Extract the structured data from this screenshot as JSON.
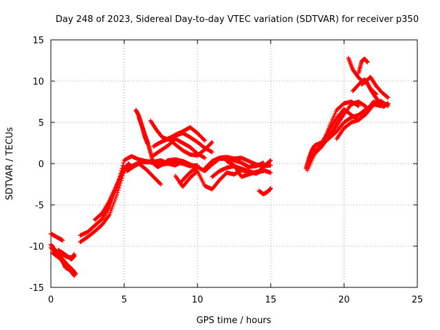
{
  "chart_data": {
    "type": "scatter",
    "title": "Day 248 of 2023, Sidereal Day-to-day VTEC variation (SDTVAR) for receiver p350",
    "xlabel": "GPS time / hours",
    "ylabel": "SDTVAR / TECUs",
    "xlim": [
      0,
      25
    ],
    "ylim": [
      -15,
      15
    ],
    "xticks": [
      "0",
      "5",
      "10",
      "15",
      "20",
      "25"
    ],
    "yticks": [
      "15",
      "10",
      "5",
      "0",
      "-5",
      "-10",
      "-15"
    ],
    "grid": true,
    "marker": "plus",
    "marker_color": "#ff0000",
    "series": [
      {
        "x": [
          0.0,
          0.3,
          0.6,
          0.9,
          1.2,
          1.5,
          1.7
        ],
        "y": [
          -10.2,
          -10.6,
          -11.2,
          -11.8,
          -12.4,
          -12.9,
          -13.4
        ]
      },
      {
        "x": [
          0.1,
          0.4,
          0.7,
          0.9,
          1.0,
          1.2,
          1.4,
          1.6
        ],
        "y": [
          -10.8,
          -11.2,
          -11.6,
          -12.2,
          -12.6,
          -12.8,
          -13.1,
          -13.6
        ]
      },
      {
        "x": [
          0.0,
          0.3,
          0.6,
          0.8
        ],
        "y": [
          -8.5,
          -8.8,
          -9.1,
          -9.3
        ]
      },
      {
        "x": [
          0.0,
          0.2,
          0.5,
          0.8,
          1.1,
          1.4,
          1.6
        ],
        "y": [
          -9.8,
          -10.3,
          -10.8,
          -11.0,
          -11.3,
          -11.4,
          -11.0
        ]
      },
      {
        "x": [
          0.5,
          0.8,
          1.1,
          1.4,
          1.6
        ],
        "y": [
          -10.5,
          -10.8,
          -11.2,
          -11.6,
          -11.2
        ]
      },
      {
        "x": [
          2.0,
          2.5,
          3.0,
          3.5,
          4.0,
          4.5,
          5.0,
          5.5,
          6.0,
          6.5,
          7.0,
          7.5,
          8.0,
          8.5,
          9.0,
          9.5,
          10.0
        ],
        "y": [
          -9.5,
          -8.9,
          -8.2,
          -7.4,
          -6.2,
          -3.8,
          -0.9,
          -0.3,
          0.1,
          0.2,
          0.1,
          -0.1,
          0.0,
          0.2,
          0.0,
          -0.3,
          -0.2
        ]
      },
      {
        "x": [
          2.0,
          2.5,
          3.0,
          3.5,
          4.0,
          4.5,
          5.0,
          5.5,
          6.0,
          6.5,
          7.0,
          7.5,
          8.0,
          8.5,
          9.0,
          9.5
        ],
        "y": [
          -8.7,
          -8.3,
          -7.5,
          -6.7,
          -5.3,
          -2.8,
          0.4,
          0.9,
          0.5,
          0.3,
          0.2,
          0.4,
          0.0,
          -0.2,
          0.3,
          -0.1
        ]
      },
      {
        "x": [
          3.0,
          3.5,
          4.0,
          4.5,
          5.0,
          5.3,
          5.5
        ],
        "y": [
          -6.8,
          -6.0,
          -4.5,
          -2.5,
          -0.7,
          0.0,
          -0.4
        ]
      },
      {
        "x": [
          3.5,
          3.8,
          4.1,
          4.4,
          4.7,
          5.0
        ],
        "y": [
          -6.4,
          -5.6,
          -4.2,
          -3.1,
          -1.8,
          -0.4
        ]
      },
      {
        "x": [
          5.2,
          5.6,
          6.0,
          6.5,
          7.0,
          7.5
        ],
        "y": [
          -0.9,
          -0.4,
          0.0,
          -0.7,
          -1.6,
          -2.5
        ]
      },
      {
        "x": [
          5.8,
          6.0,
          6.2,
          6.4,
          6.6,
          6.8,
          7.0,
          7.3,
          7.6,
          8.0,
          8.5,
          9.0,
          9.5,
          10.0
        ],
        "y": [
          6.5,
          5.8,
          4.7,
          3.6,
          2.6,
          1.3,
          0.0,
          -0.4,
          -0.1,
          0.4,
          0.5,
          0.3,
          -0.1,
          -0.4
        ]
      },
      {
        "x": [
          6.0,
          6.2,
          6.4,
          6.6
        ],
        "y": [
          5.6,
          4.6,
          3.3,
          2.4
        ]
      },
      {
        "x": [
          6.8,
          7.2,
          7.6,
          8.0,
          8.5,
          9.0,
          9.5,
          10.0,
          10.5,
          11.0
        ],
        "y": [
          5.2,
          4.1,
          3.2,
          2.9,
          3.4,
          3.7,
          3.2,
          2.6,
          1.9,
          1.4
        ]
      },
      {
        "x": [
          7.0,
          7.5,
          8.0,
          8.5,
          9.0,
          9.5,
          10.0,
          10.5
        ],
        "y": [
          2.1,
          2.6,
          3.0,
          3.5,
          3.9,
          4.4,
          3.7,
          2.8
        ]
      },
      {
        "x": [
          7.0,
          7.5,
          8.0,
          8.5,
          9.0,
          9.5,
          10.0,
          10.5
        ],
        "y": [
          1.0,
          1.6,
          2.2,
          3.0,
          2.5,
          2.0,
          1.2,
          0.7
        ]
      },
      {
        "x": [
          8.0,
          8.5,
          9.0,
          9.5,
          10.0,
          10.5,
          11.0
        ],
        "y": [
          3.1,
          2.3,
          1.6,
          1.1,
          1.0,
          1.7,
          2.6
        ]
      },
      {
        "x": [
          8.5,
          9.0,
          9.5,
          10.0,
          10.5,
          11.0,
          11.5,
          12.0,
          12.5,
          13.0,
          13.5,
          14.0,
          14.5,
          15.0
        ],
        "y": [
          -1.5,
          -2.8,
          -1.7,
          -0.9,
          -2.7,
          -3.1,
          -2.0,
          -1.1,
          -1.3,
          -0.8,
          -1.0,
          -1.2,
          -0.8,
          -1.1
        ]
      },
      {
        "x": [
          8.8,
          9.2,
          9.6,
          10.0,
          10.5,
          11.0,
          11.5,
          12.0,
          12.5,
          13.0,
          13.5,
          14.0,
          14.5
        ],
        "y": [
          -2.4,
          -1.6,
          -0.9,
          -0.4,
          -0.9,
          -0.1,
          0.6,
          0.6,
          0.4,
          0.1,
          -0.4,
          -0.3,
          0.1
        ]
      },
      {
        "x": [
          10.5,
          11.0,
          11.5,
          12.0,
          12.5,
          13.0,
          13.5,
          14.0,
          14.5,
          15.0
        ],
        "y": [
          -0.6,
          0.3,
          0.7,
          0.8,
          0.6,
          0.7,
          0.3,
          -0.1,
          -0.3,
          -0.2
        ]
      },
      {
        "x": [
          11.0,
          11.5,
          12.0,
          12.5,
          13.0,
          13.5,
          14.0,
          14.5,
          15.0
        ],
        "y": [
          -1.6,
          -0.9,
          -0.5,
          -0.3,
          -0.6,
          -0.9,
          -1.2,
          -0.4,
          0.4
        ]
      },
      {
        "x": [
          12.0,
          12.5,
          13.0,
          13.5,
          14.0,
          14.5
        ],
        "y": [
          0.3,
          -0.2,
          -1.6,
          -1.3,
          -1.0,
          -0.9
        ]
      },
      {
        "x": [
          14.2,
          14.5,
          14.8,
          15.0
        ],
        "y": [
          -3.3,
          -3.7,
          -3.4,
          -3.0
        ]
      },
      {
        "x": [
          17.4,
          17.6,
          17.8,
          18.0,
          18.5,
          19.0,
          19.5,
          20.0
        ],
        "y": [
          -0.6,
          0.6,
          1.6,
          2.2,
          2.6,
          3.4,
          4.8,
          6.6
        ]
      },
      {
        "x": [
          17.5,
          18.0,
          18.5,
          19.0,
          19.5,
          20.0,
          20.5,
          21.0,
          21.5
        ],
        "y": [
          -0.8,
          1.2,
          2.1,
          3.4,
          4.6,
          6.0,
          7.2,
          7.5,
          6.9
        ]
      },
      {
        "x": [
          17.6,
          18.0,
          18.5,
          19.0,
          19.5,
          20.0,
          20.5,
          21.0
        ],
        "y": [
          0.2,
          1.3,
          2.3,
          4.5,
          6.5,
          7.3,
          7.5,
          7.0
        ]
      },
      {
        "x": [
          18.0,
          18.5,
          19.0,
          19.5,
          20.0,
          20.5,
          21.0,
          21.5,
          22.0,
          22.5,
          23.0
        ],
        "y": [
          1.5,
          2.3,
          3.1,
          3.9,
          5.0,
          5.6,
          5.9,
          6.6,
          7.2,
          7.0,
          7.2
        ]
      },
      {
        "x": [
          18.5,
          19.0,
          19.5,
          20.0,
          20.5,
          21.0,
          21.5,
          22.0,
          22.5
        ],
        "y": [
          2.6,
          4.1,
          5.5,
          6.6,
          5.9,
          5.3,
          6.3,
          7.5,
          7.1
        ]
      },
      {
        "x": [
          19.5,
          20.0,
          20.5,
          21.0,
          21.5,
          22.0,
          22.5,
          23.0
        ],
        "y": [
          3.0,
          4.3,
          5.0,
          5.3,
          6.0,
          7.1,
          7.6,
          7.0
        ]
      },
      {
        "x": [
          20.3,
          20.6,
          21.0,
          21.4,
          21.8,
          22.2,
          22.6,
          23.0
        ],
        "y": [
          12.8,
          11.4,
          10.4,
          9.8,
          10.5,
          9.4,
          8.6,
          8.0
        ]
      },
      {
        "x": [
          21.0,
          21.2,
          21.4,
          21.6
        ],
        "y": [
          11.0,
          12.4,
          12.7,
          12.3
        ]
      },
      {
        "x": [
          21.2,
          21.5,
          21.8,
          22.1,
          22.4,
          22.7,
          23.0
        ],
        "y": [
          9.6,
          10.1,
          9.0,
          8.2,
          7.4,
          6.9,
          7.3
        ]
      },
      {
        "x": [
          20.6,
          21.0,
          21.4,
          21.8,
          22.2
        ],
        "y": [
          8.8,
          9.6,
          10.2,
          9.1,
          8.4
        ]
      }
    ]
  }
}
